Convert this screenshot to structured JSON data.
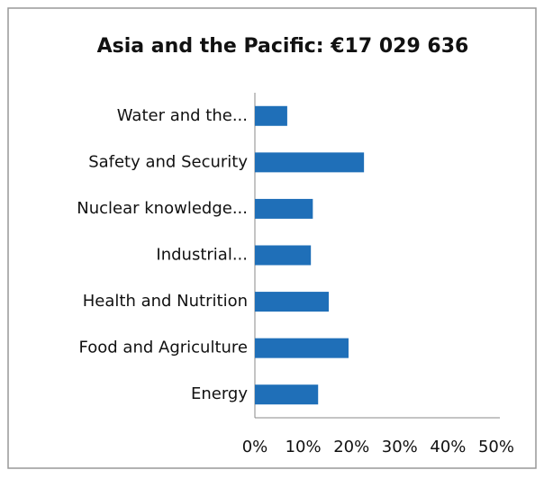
{
  "chart_data": {
    "type": "hbar",
    "title": "Asia and the Pacific: €17 029 636",
    "categories": [
      "Water and the...",
      "Safety and Security",
      "Nuclear knowledge...",
      "Industrial...",
      "Health and Nutrition",
      "Food and Agriculture",
      "Energy"
    ],
    "values": [
      6.7,
      22.6,
      12,
      11.6,
      15.3,
      19.4,
      13.1
    ],
    "color": "#1f6fb8",
    "xlim": [
      0,
      50
    ],
    "xticks": [
      {
        "value": 0,
        "label": "0%"
      },
      {
        "value": 10,
        "label": "10%"
      },
      {
        "value": 20,
        "label": "20%"
      },
      {
        "value": 30,
        "label": "30%"
      },
      {
        "value": 40,
        "label": "40%"
      },
      {
        "value": 50,
        "label": "50%"
      }
    ],
    "grid": false
  }
}
